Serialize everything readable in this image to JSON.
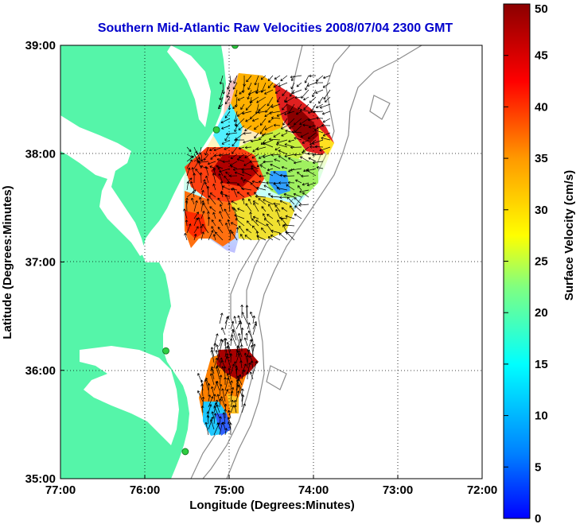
{
  "title": "Southern Mid-Atlantic Raw Velocities 2008/07/04 2300 GMT",
  "x_axis": {
    "label": "Longitude (Degrees:Minutes)",
    "ticks": [
      "77:00",
      "76:00",
      "75:00",
      "74:00",
      "73:00",
      "72:00"
    ]
  },
  "y_axis": {
    "label": "Latitude (Degrees:Minutes)",
    "ticks": [
      "39:00",
      "38:00",
      "37:00",
      "36:00",
      "35:00"
    ]
  },
  "colorbar": {
    "label": "Surface Velocity (cm/s)",
    "ticks": [
      "50",
      "45",
      "40",
      "35",
      "30",
      "25",
      "20",
      "15",
      "10",
      "5",
      "0"
    ]
  },
  "colors": {
    "land": "#55f5a9",
    "title": "#0000cc",
    "bathymetry": "#8c8c8c",
    "station": "#2ecc40",
    "arrow": "#000000"
  },
  "chart_data": {
    "type": "map",
    "x_range_deg": [
      -77,
      -72
    ],
    "y_range_deg": [
      35,
      39
    ],
    "grid": "dotted",
    "colorbar_range": [
      0,
      50
    ],
    "stations": [
      {
        "lon": -74.93,
        "lat": 39.0
      },
      {
        "lon": -75.15,
        "lat": 38.22
      },
      {
        "lon": -75.75,
        "lat": 36.18
      },
      {
        "lon": -75.52,
        "lat": 35.25
      }
    ]
  }
}
